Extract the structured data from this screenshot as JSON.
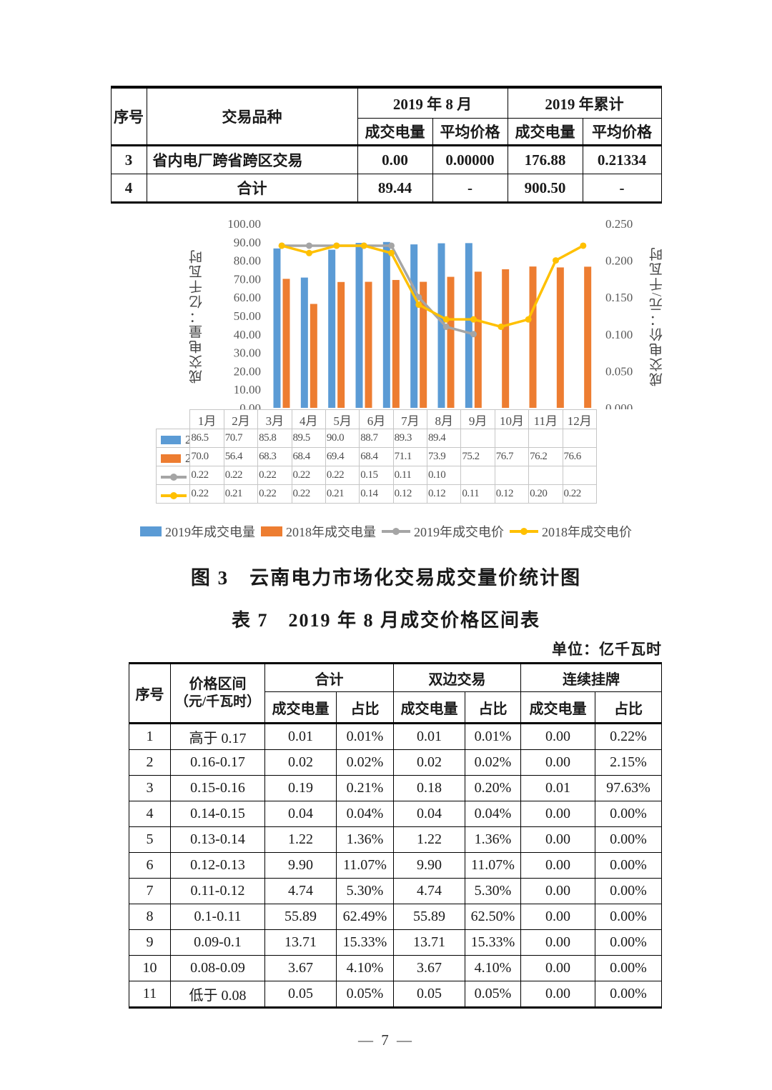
{
  "page": {
    "number_label": "— 7 —"
  },
  "top_table": {
    "header": {
      "col_seq": "序号",
      "col_type": "交易品种",
      "group_month": "2019 年 8 月",
      "group_cum": "2019 年累计",
      "sub_volume": "成交电量",
      "sub_price": "平均价格"
    },
    "rows": [
      {
        "cells": [
          "3",
          "省内电厂跨省跨区交易",
          "0.00",
          "0.00000",
          "176.88",
          "0.21334"
        ],
        "variety_align": "left"
      },
      {
        "cells": [
          "4",
          "合计",
          "89.44",
          "-",
          "900.50",
          "-"
        ],
        "variety_align": "center"
      }
    ]
  },
  "chart_data": {
    "type": "combo-bar-line",
    "categories": [
      "1月",
      "2月",
      "3月",
      "4月",
      "5月",
      "6月",
      "7月",
      "8月",
      "9月",
      "10月",
      "11月",
      "12月"
    ],
    "series": [
      {
        "name": "2019年成交电量",
        "kind": "bar",
        "axis": "left",
        "color": "#5B9BD5",
        "values": [
          86.5,
          70.7,
          85.8,
          89.5,
          90.0,
          88.7,
          89.3,
          89.4
        ],
        "display": [
          "86.5",
          "70.7",
          "85.8",
          "89.5",
          "90.0",
          "88.7",
          "89.3",
          "89.4"
        ]
      },
      {
        "name": "2018年成交电量",
        "kind": "bar",
        "axis": "left",
        "color": "#ED7D31",
        "values": [
          70.0,
          56.4,
          68.3,
          68.4,
          69.4,
          68.4,
          71.1,
          73.9,
          75.2,
          76.7,
          76.2,
          76.6
        ],
        "display": [
          "70.0",
          "56.4",
          "68.3",
          "68.4",
          "69.4",
          "68.4",
          "71.1",
          "73.9",
          "75.2",
          "76.7",
          "76.2",
          "76.6"
        ]
      },
      {
        "name": "2019年成交电价",
        "kind": "line",
        "axis": "right",
        "color": "#A5A5A5",
        "values": [
          0.22,
          0.22,
          0.22,
          0.22,
          0.22,
          0.15,
          0.11,
          0.1
        ],
        "display": [
          "0.22",
          "0.22",
          "0.22",
          "0.22",
          "0.22",
          "0.15",
          "0.11",
          "0.10"
        ]
      },
      {
        "name": "2018年成交电价",
        "kind": "line",
        "axis": "right",
        "color": "#FFC000",
        "values": [
          0.22,
          0.21,
          0.22,
          0.22,
          0.21,
          0.14,
          0.12,
          0.12,
          0.11,
          0.12,
          0.2,
          0.22
        ],
        "display": [
          "0.22",
          "0.21",
          "0.22",
          "0.22",
          "0.21",
          "0.14",
          "0.12",
          "0.12",
          "0.11",
          "0.12",
          "0.20",
          "0.22"
        ]
      }
    ],
    "left_axis": {
      "label": "成交电量：亿千瓦时",
      "min": 0,
      "max": 100,
      "step": 10,
      "decimals": 2
    },
    "right_axis": {
      "label": "成交电价：元/千瓦时",
      "min": 0,
      "max": 0.25,
      "step": 0.05,
      "decimals": 3
    },
    "grid": "off",
    "legend_position": "bottom"
  },
  "figure_caption": "图 3　云南电力市场化交易成交量价统计图",
  "price_table": {
    "title": "表 7　2019 年 8 月成交价格区间表",
    "unit": "单位：亿千瓦时",
    "header": {
      "col_seq": "序号",
      "col_range_line1": "价格区间",
      "col_range_line2": "（元/千瓦时）",
      "group_total": "合计",
      "group_bilateral": "双边交易",
      "group_listing": "连续挂牌",
      "sub_volume": "成交电量",
      "sub_share": "占比"
    },
    "rows": [
      [
        "1",
        "高于 0.17",
        "0.01",
        "0.01%",
        "0.01",
        "0.01%",
        "0.00",
        "0.22%"
      ],
      [
        "2",
        "0.16-0.17",
        "0.02",
        "0.02%",
        "0.02",
        "0.02%",
        "0.00",
        "2.15%"
      ],
      [
        "3",
        "0.15-0.16",
        "0.19",
        "0.21%",
        "0.18",
        "0.20%",
        "0.01",
        "97.63%"
      ],
      [
        "4",
        "0.14-0.15",
        "0.04",
        "0.04%",
        "0.04",
        "0.04%",
        "0.00",
        "0.00%"
      ],
      [
        "5",
        "0.13-0.14",
        "1.22",
        "1.36%",
        "1.22",
        "1.36%",
        "0.00",
        "0.00%"
      ],
      [
        "6",
        "0.12-0.13",
        "9.90",
        "11.07%",
        "9.90",
        "11.07%",
        "0.00",
        "0.00%"
      ],
      [
        "7",
        "0.11-0.12",
        "4.74",
        "5.30%",
        "4.74",
        "5.30%",
        "0.00",
        "0.00%"
      ],
      [
        "8",
        "0.1-0.11",
        "55.89",
        "62.49%",
        "55.89",
        "62.50%",
        "0.00",
        "0.00%"
      ],
      [
        "9",
        "0.09-0.1",
        "13.71",
        "15.33%",
        "13.71",
        "15.33%",
        "0.00",
        "0.00%"
      ],
      [
        "10",
        "0.08-0.09",
        "3.67",
        "4.10%",
        "3.67",
        "4.10%",
        "0.00",
        "0.00%"
      ],
      [
        "11",
        "低于 0.08",
        "0.05",
        "0.05%",
        "0.05",
        "0.05%",
        "0.00",
        "0.00%"
      ]
    ]
  }
}
